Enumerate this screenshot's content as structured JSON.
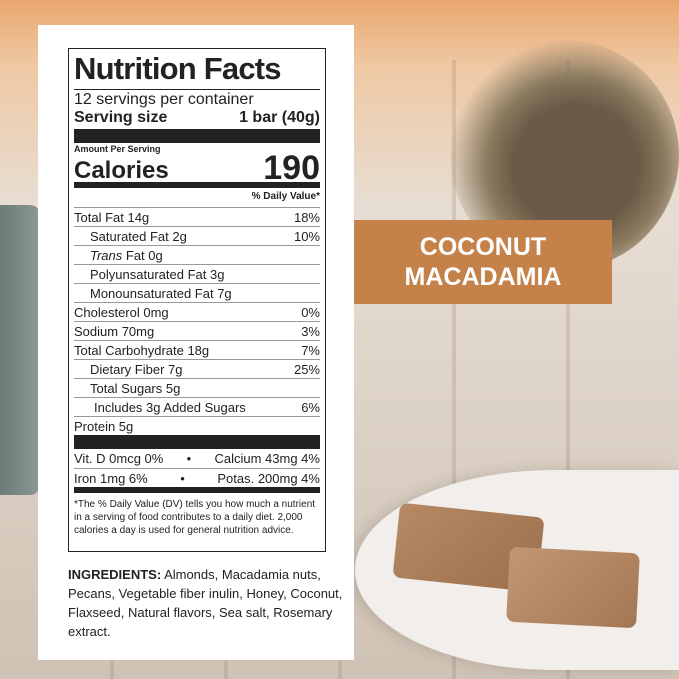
{
  "banner": {
    "line1": "COCONUT",
    "line2": "MACADAMIA"
  },
  "nutrition": {
    "title": "Nutrition Facts",
    "servings": "12 servings per container",
    "serving_size_label": "Serving size",
    "serving_size_value": "1 bar (40g)",
    "amount_per_serving": "Amount Per Serving",
    "calories_label": "Calories",
    "calories_value": "190",
    "dv_header": "% Daily Value*",
    "rows": [
      {
        "name": "Total Fat 14g",
        "dv": "18%",
        "indent": 0
      },
      {
        "name": "Saturated Fat 2g",
        "dv": "10%",
        "indent": 1
      },
      {
        "name": "Trans Fat 0g",
        "dv": "",
        "indent": 1
      },
      {
        "name": "Polyunsaturated Fat 3g",
        "dv": "",
        "indent": 1
      },
      {
        "name": "Monounsaturated Fat 7g",
        "dv": "",
        "indent": 1
      },
      {
        "name": "Cholesterol 0mg",
        "dv": "0%",
        "indent": 0
      },
      {
        "name": "Sodium 70mg",
        "dv": "3%",
        "indent": 0
      },
      {
        "name": "Total Carbohydrate 18g",
        "dv": "7%",
        "indent": 0
      },
      {
        "name": "Dietary Fiber 7g",
        "dv": "25%",
        "indent": 1
      },
      {
        "name": "Total Sugars 5g",
        "dv": "",
        "indent": 1
      },
      {
        "name": "Includes 3g Added Sugars",
        "dv": "6%",
        "indent": 2
      },
      {
        "name": "Protein 5g",
        "dv": "",
        "indent": 0
      }
    ],
    "vit_d": "Vit. D 0mcg 0%",
    "calcium": "Calcium 43mg 4%",
    "iron": "Iron 1mg 6%",
    "potassium": "Potas. 200mg 4%",
    "bullet": "•",
    "footnote": "*The % Daily Value (DV) tells you how much a nutrient in a serving of food contributes to a daily diet. 2,000 calories a day is used for general nutrition advice."
  },
  "ingredients": {
    "label": "INGREDIENTS:",
    "text": " Almonds, Macadamia nuts, Pecans, Vegetable fiber inulin, Honey, Coconut, Flaxseed, Natural flavors, Sea salt, Rosemary extract."
  },
  "colors": {
    "banner": "#c4814a"
  }
}
